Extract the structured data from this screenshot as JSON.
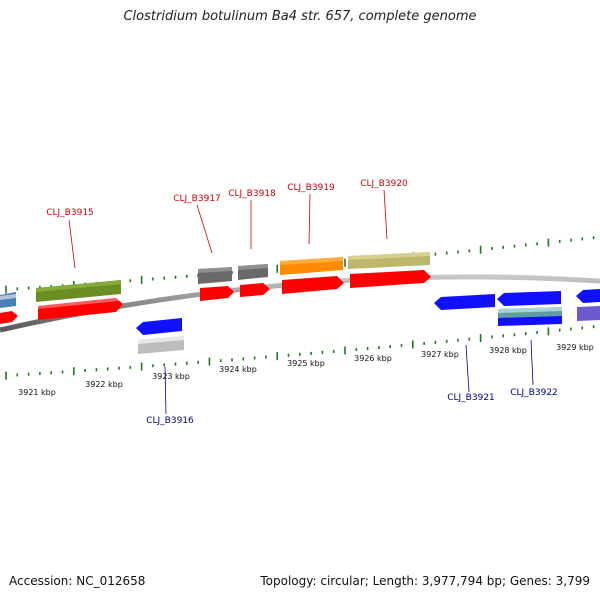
{
  "title": "Clostridium botulinum Ba4 str. 657, complete genome",
  "footer": {
    "accession": "Accession: NC_012658",
    "topology": "Topology: circular; Length: 3,977,794 bp; Genes: 3,799"
  },
  "colors": {
    "backbone": "#8c8c8c",
    "tick": "#1d7a1d",
    "forward_label": "#cc0000",
    "reverse_label": "#00008b",
    "cds": "#ff0000",
    "reverse_cds": "#1010ff"
  },
  "scale": {
    "unit": "kbp",
    "labels": [
      "3921 kbp",
      "3922 kbp",
      "3923 kbp",
      "3924 kbp",
      "3925 kbp",
      "3926 kbp",
      "3927 kbp",
      "3928 kbp",
      "3929 kbp"
    ]
  },
  "forward_genes": [
    {
      "label": "CLJ_B3915",
      "gene_color": "#6b8e23",
      "cds_color": "#ff0000"
    },
    {
      "label": "CLJ_B3917",
      "gene_color": "#696969",
      "cds_color": "#ff0000"
    },
    {
      "label": "CLJ_B3918",
      "gene_color": "#696969",
      "cds_color": "#ff0000"
    },
    {
      "label": "CLJ_B3919",
      "gene_color": "#ff8c00",
      "cds_color": "#ff0000"
    },
    {
      "label": "CLJ_B3920",
      "gene_color": "#bdb76b",
      "cds_color": "#ff0000"
    }
  ],
  "reverse_genes": [
    {
      "label": "CLJ_B3916",
      "gene_color": "#bdbdbd",
      "cds_color": "#1010ff"
    },
    {
      "label": "CLJ_B3921",
      "gene_color": "",
      "cds_color": "#1010ff"
    },
    {
      "label": "CLJ_B3922",
      "gene_color": "#5f9ea0",
      "cds_color": "#1010ff"
    }
  ]
}
